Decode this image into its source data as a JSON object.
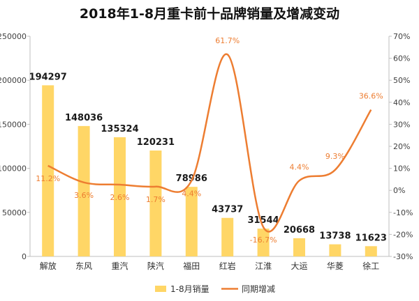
{
  "chart_data": {
    "type": "bar",
    "title": "2018年1-8月重卡前十品牌销量及增减变动",
    "categories": [
      "解放",
      "东风",
      "重汽",
      "陕汽",
      "福田",
      "红岩",
      "江淮",
      "大运",
      "华菱",
      "徐工"
    ],
    "series": [
      {
        "name": "1-8月销量",
        "type": "bar",
        "axis": "left",
        "color": "#ffd666",
        "values": [
          194297,
          148036,
          135324,
          120231,
          78986,
          43737,
          31544,
          20668,
          13738,
          11623
        ],
        "labels": [
          "194297",
          "148036",
          "135324",
          "120231",
          "78986",
          "43737",
          "31544",
          "20668",
          "13738",
          "11623"
        ]
      },
      {
        "name": "同期增减",
        "type": "line",
        "smooth": true,
        "axis": "right",
        "color": "#ed7d31",
        "values": [
          11.2,
          3.6,
          2.6,
          1.7,
          4.4,
          61.7,
          -16.7,
          4.4,
          9.3,
          36.6
        ],
        "labels": [
          "11.2%",
          "3.6%",
          "2.6%",
          "1.7%",
          "4.4%",
          "61.7%",
          "-16.7%",
          "4.4%",
          "9.3%",
          "36.6%"
        ]
      }
    ],
    "y_left": {
      "min": 0,
      "max": 250000,
      "step": 50000,
      "tick_labels": [
        "0",
        "50000",
        "100000",
        "150000",
        "200000",
        "250000"
      ]
    },
    "y_right": {
      "min": -30,
      "max": 70,
      "step": 10,
      "tick_labels": [
        "-30%",
        "-20%",
        "-10%",
        "0%",
        "10%",
        "20%",
        "30%",
        "40%",
        "50%",
        "60%",
        "70%"
      ]
    },
    "grid": false,
    "legend": "bottom-center"
  }
}
